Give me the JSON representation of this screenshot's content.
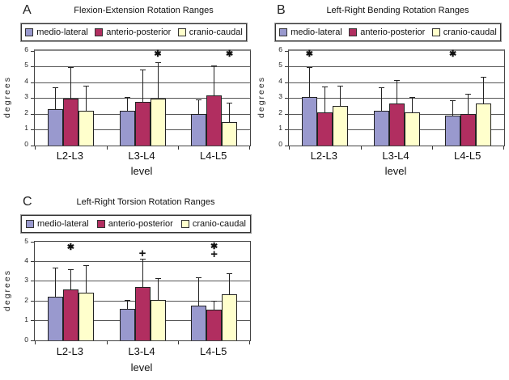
{
  "chart_data": [
    {
      "type": "bar",
      "panel": "A",
      "title": "Flexion-Extension Rotation Ranges",
      "xlabel": "level",
      "ylabel": "degrees",
      "ylim": [
        0,
        6
      ],
      "yticks": [
        0,
        1,
        2,
        3,
        4,
        5,
        6
      ],
      "grid": true,
      "legend_position": "top",
      "categories": [
        "L2-L3",
        "L3-L4",
        "L4-L5"
      ],
      "series": [
        {
          "name": "medio-lateral",
          "color": "#9999CE",
          "values": [
            2.3,
            2.2,
            2.0
          ],
          "error_tops": [
            3.7,
            3.1,
            2.9
          ]
        },
        {
          "name": "anterio-posterior",
          "color": "#B12E60",
          "values": [
            3.0,
            2.75,
            3.2
          ],
          "error_tops": [
            4.95,
            4.8,
            5.1
          ]
        },
        {
          "name": "cranio-caudal",
          "color": "#FFFFCC",
          "values": [
            2.2,
            3.0,
            1.5
          ],
          "error_tops": [
            3.8,
            5.3,
            2.7
          ]
        }
      ],
      "annotations": [
        {
          "category": "L3-L4",
          "series": "cranio-caudal",
          "symbol": "*",
          "y": 5.8
        },
        {
          "category": "L4-L5",
          "series": "cranio-caudal",
          "symbol": "*",
          "y": 5.8
        }
      ]
    },
    {
      "type": "bar",
      "panel": "B",
      "title": "Left-Right Bending Rotation Ranges",
      "xlabel": "level",
      "ylabel": "degrees",
      "ylim": [
        0,
        6
      ],
      "yticks": [
        0,
        1,
        2,
        3,
        4,
        5,
        6
      ],
      "grid": true,
      "legend_position": "top",
      "categories": [
        "L2-L3",
        "L3-L4",
        "L4-L5"
      ],
      "series": [
        {
          "name": "medio-lateral",
          "color": "#9999CE",
          "values": [
            3.1,
            2.2,
            1.9
          ],
          "error_tops": [
            5.0,
            3.7,
            2.85
          ]
        },
        {
          "name": "anterio-posterior",
          "color": "#B12E60",
          "values": [
            2.1,
            2.65,
            2.0
          ],
          "error_tops": [
            3.75,
            4.15,
            3.3
          ]
        },
        {
          "name": "cranio-caudal",
          "color": "#FFFFCC",
          "values": [
            2.5,
            2.1,
            2.65
          ],
          "error_tops": [
            3.8,
            3.1,
            4.35
          ]
        }
      ],
      "annotations": [
        {
          "category": "L2-L3",
          "series": "medio-lateral",
          "symbol": "*",
          "y": 5.8
        },
        {
          "category": "L4-L5",
          "series": "medio-lateral",
          "symbol": "*",
          "y": 5.8
        }
      ]
    },
    {
      "type": "bar",
      "panel": "C",
      "title": "Left-Right Torsion Rotation Ranges",
      "xlabel": "level",
      "ylabel": "degrees",
      "ylim": [
        0,
        5
      ],
      "yticks": [
        0,
        1,
        2,
        3,
        4,
        5
      ],
      "grid": true,
      "legend_position": "top",
      "categories": [
        "L2-L3",
        "L3-L4",
        "L4-L5"
      ],
      "series": [
        {
          "name": "medio-lateral",
          "color": "#9999CE",
          "values": [
            2.2,
            1.6,
            1.75
          ],
          "error_tops": [
            3.7,
            2.05,
            3.2
          ]
        },
        {
          "name": "anterio-posterior",
          "color": "#B12E60",
          "values": [
            2.6,
            2.7,
            1.55
          ],
          "error_tops": [
            3.6,
            4.15,
            2.0
          ]
        },
        {
          "name": "cranio-caudal",
          "color": "#FFFFCC",
          "values": [
            2.4,
            2.05,
            2.35
          ],
          "error_tops": [
            3.8,
            3.15,
            3.4
          ]
        }
      ],
      "annotations": [
        {
          "category": "L2-L3",
          "series": "anterio-posterior",
          "symbol": "*",
          "y": 4.7
        },
        {
          "category": "L3-L4",
          "series": "anterio-posterior",
          "symbol": "+",
          "y": 4.35
        },
        {
          "category": "L4-L5",
          "series": "anterio-posterior",
          "symbol": "*",
          "y": 4.75
        },
        {
          "category": "L4-L5",
          "series": "anterio-posterior",
          "symbol": "+",
          "y": 4.3
        }
      ]
    }
  ]
}
